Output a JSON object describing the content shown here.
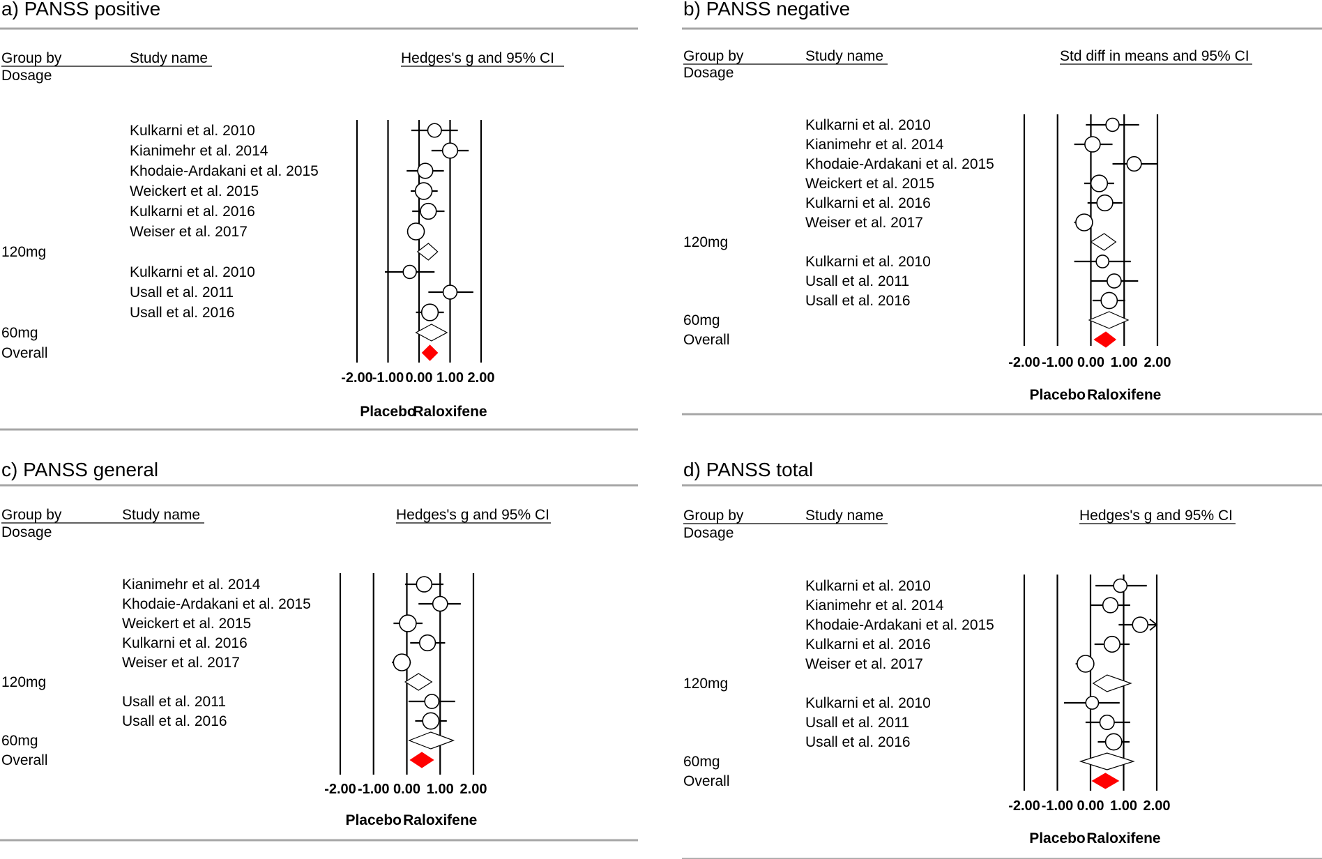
{
  "chart_data": [
    {
      "type": "forest",
      "title": "a) PANSS positive",
      "group_header": "Group by\nDosage",
      "study_header": "Study name",
      "effect_header": "Hedges's g and 95% CI",
      "xlim": [
        -2,
        2
      ],
      "ticks": [
        "-2.00",
        "-1.00",
        "0.00",
        "1.00",
        "2.00"
      ],
      "favours_left": "Placebo",
      "favours_right": "Raloxifene",
      "groups": [
        {
          "label": "120mg",
          "studies": [
            {
              "name": "Kulkarni et al. 2010",
              "g": 0.5,
              "lower": -0.25,
              "upper": 1.25
            },
            {
              "name": "Kianimehr et al. 2014",
              "g": 1.0,
              "lower": 0.4,
              "upper": 1.6
            },
            {
              "name": "Khodaie-Ardakani et al. 2015",
              "g": 0.2,
              "lower": -0.4,
              "upper": 0.8
            },
            {
              "name": "Weickert et al. 2015",
              "g": 0.15,
              "lower": -0.27,
              "upper": 0.6
            },
            {
              "name": "Kulkarni et al. 2016",
              "g": 0.3,
              "lower": -0.22,
              "upper": 0.82
            },
            {
              "name": "Weiser et al. 2017",
              "g": -0.1,
              "lower": -0.35,
              "upper": 0.1
            }
          ],
          "summary": {
            "g": 0.3,
            "lower": -0.05,
            "upper": 0.6
          }
        },
        {
          "label": "60mg",
          "studies": [
            {
              "name": "Kulkarni et al. 2010",
              "g": -0.3,
              "lower": -1.1,
              "upper": 0.5
            },
            {
              "name": "Usall et al. 2011",
              "g": 1.0,
              "lower": 0.3,
              "upper": 1.75
            },
            {
              "name": "Usall et al. 2016",
              "g": 0.35,
              "lower": -0.1,
              "upper": 0.8
            }
          ],
          "summary": {
            "g": 0.4,
            "lower": -0.1,
            "upper": 0.9
          }
        }
      ],
      "overall": {
        "label": "Overall",
        "g": 0.35,
        "lower": 0.1,
        "upper": 0.6
      }
    },
    {
      "type": "forest",
      "title": "b) PANSS negative",
      "group_header": "Group by\nDosage",
      "study_header": "Study name",
      "effect_header": "Std diff in means and 95% CI",
      "xlim": [
        -2,
        2
      ],
      "ticks": [
        "-2.00",
        "-1.00",
        "0.00",
        "1.00",
        "2.00"
      ],
      "favours_left": "Placebo",
      "favours_right": "Raloxifene",
      "groups": [
        {
          "label": "120mg",
          "studies": [
            {
              "name": "Kulkarni et al. 2010",
              "g": 0.65,
              "lower": -0.15,
              "upper": 1.45
            },
            {
              "name": "Kianimehr et al. 2014",
              "g": 0.05,
              "lower": -0.5,
              "upper": 0.65
            },
            {
              "name": "Khodaie-Ardakani et al. 2015",
              "g": 1.3,
              "lower": 0.65,
              "upper": 2.0
            },
            {
              "name": "Weickert et al. 2015",
              "g": 0.25,
              "lower": -0.2,
              "upper": 0.7
            },
            {
              "name": "Kulkarni et al. 2016",
              "g": 0.42,
              "lower": -0.1,
              "upper": 0.95
            },
            {
              "name": "Weiser et al. 2017",
              "g": -0.2,
              "lower": -0.5,
              "upper": 0.05
            }
          ],
          "summary": {
            "g": 0.4,
            "lower": 0.0,
            "upper": 0.75
          }
        },
        {
          "label": "60mg",
          "studies": [
            {
              "name": "Kulkarni et al. 2010",
              "g": 0.35,
              "lower": -0.5,
              "upper": 1.2
            },
            {
              "name": "Usall et al. 2011",
              "g": 0.7,
              "lower": 0.0,
              "upper": 1.42
            },
            {
              "name": "Usall et al. 2016",
              "g": 0.55,
              "lower": 0.05,
              "upper": 1.03
            }
          ],
          "summary": {
            "g": 0.55,
            "lower": -0.05,
            "upper": 1.12
          }
        }
      ],
      "overall": {
        "label": "Overall",
        "g": 0.45,
        "lower": 0.1,
        "upper": 0.75
      }
    },
    {
      "type": "forest",
      "title": "c) PANSS general",
      "group_header": "Group by\nDosage",
      "study_header": "Study name",
      "effect_header": "Hedges's g and 95% CI",
      "xlim": [
        -2,
        2
      ],
      "ticks": [
        "-2.00",
        "-1.00",
        "0.00",
        "1.00",
        "2.00"
      ],
      "favours_left": "Placebo",
      "favours_right": "Raloxifene",
      "groups": [
        {
          "label": "120mg",
          "studies": [
            {
              "name": "Kianimehr et al. 2014",
              "g": 0.52,
              "lower": -0.05,
              "upper": 1.1
            },
            {
              "name": "Khodaie-Ardakani et al. 2015",
              "g": 1.0,
              "lower": 0.35,
              "upper": 1.62
            },
            {
              "name": "Weickert et al. 2015",
              "g": 0.03,
              "lower": -0.4,
              "upper": 0.47
            },
            {
              "name": "Kulkarni et al. 2016",
              "g": 0.62,
              "lower": 0.1,
              "upper": 1.15
            },
            {
              "name": "Weiser et al. 2017",
              "g": -0.15,
              "lower": -0.45,
              "upper": 0.12
            }
          ],
          "summary": {
            "g": 0.35,
            "lower": -0.05,
            "upper": 0.75
          }
        },
        {
          "label": "60mg",
          "studies": [
            {
              "name": "Usall et al. 2011",
              "g": 0.75,
              "lower": 0.05,
              "upper": 1.45
            },
            {
              "name": "Usall et al. 2016",
              "g": 0.72,
              "lower": 0.25,
              "upper": 1.2
            }
          ],
          "summary": {
            "g": 0.72,
            "lower": 0.07,
            "upper": 1.4
          }
        }
      ],
      "overall": {
        "label": "Overall",
        "g": 0.45,
        "lower": 0.1,
        "upper": 0.8
      }
    },
    {
      "type": "forest",
      "title": "d) PANSS total",
      "group_header": "Group by\nDosage",
      "study_header": "Study name",
      "effect_header": "Hedges's g and 95% CI",
      "xlim": [
        -2,
        2
      ],
      "ticks": [
        "-2.00",
        "-1.00",
        "0.00",
        "1.00",
        "2.00"
      ],
      "favours_left": "Placebo",
      "favours_right": "Raloxifene",
      "groups": [
        {
          "label": "120mg",
          "studies": [
            {
              "name": "Kulkarni et al. 2010",
              "g": 0.9,
              "lower": 0.15,
              "upper": 1.7
            },
            {
              "name": "Kianimehr et al. 2014",
              "g": 0.6,
              "lower": 0.0,
              "upper": 1.2
            },
            {
              "name": "Khodaie-Ardakani et al. 2015",
              "g": 1.5,
              "lower": 0.85,
              "upper": 2.0,
              "arrow": true
            },
            {
              "name": "Kulkarni et al. 2016",
              "g": 0.65,
              "lower": 0.12,
              "upper": 1.18
            },
            {
              "name": "Weiser et al. 2017",
              "g": -0.15,
              "lower": -0.45,
              "upper": 0.1
            }
          ],
          "summary": {
            "g": 0.5,
            "lower": 0.08,
            "upper": 1.22
          }
        },
        {
          "label": "60mg",
          "studies": [
            {
              "name": "Kulkarni et al. 2010",
              "g": 0.05,
              "lower": -0.8,
              "upper": 0.88
            },
            {
              "name": "Usall et al. 2011",
              "g": 0.5,
              "lower": -0.15,
              "upper": 1.2
            },
            {
              "name": "Usall et al. 2016",
              "g": 0.7,
              "lower": 0.22,
              "upper": 1.18
            }
          ],
          "summary": {
            "g": 0.5,
            "lower": -0.3,
            "upper": 1.3
          }
        }
      ],
      "overall": {
        "label": "Overall",
        "g": 0.45,
        "lower": 0.05,
        "upper": 0.85
      }
    }
  ]
}
